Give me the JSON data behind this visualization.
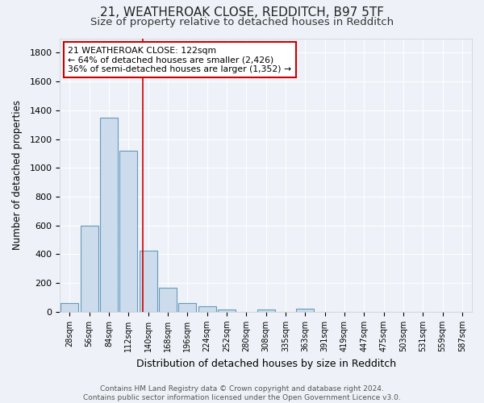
{
  "title1": "21, WEATHEROAK CLOSE, REDDITCH, B97 5TF",
  "title2": "Size of property relative to detached houses in Redditch",
  "xlabel": "Distribution of detached houses by size in Redditch",
  "ylabel": "Number of detached properties",
  "bar_labels": [
    "28sqm",
    "56sqm",
    "84sqm",
    "112sqm",
    "140sqm",
    "168sqm",
    "196sqm",
    "224sqm",
    "252sqm",
    "280sqm",
    "308sqm",
    "335sqm",
    "363sqm",
    "391sqm",
    "419sqm",
    "447sqm",
    "475sqm",
    "503sqm",
    "531sqm",
    "559sqm",
    "587sqm"
  ],
  "bar_values": [
    60,
    600,
    1350,
    1120,
    425,
    170,
    60,
    40,
    15,
    0,
    15,
    0,
    20,
    0,
    0,
    0,
    0,
    0,
    0,
    0,
    0
  ],
  "bar_color": "#ccdcec",
  "bar_edge_color": "#6699bb",
  "property_line_x": 3.72,
  "annotation_text": "21 WEATHEROAK CLOSE: 122sqm\n← 64% of detached houses are smaller (2,426)\n36% of semi-detached houses are larger (1,352) →",
  "annotation_box_color": "#ffffff",
  "annotation_box_edge": "#cc0000",
  "vline_color": "#cc0000",
  "ylim": [
    0,
    1900
  ],
  "yticks": [
    0,
    200,
    400,
    600,
    800,
    1000,
    1200,
    1400,
    1600,
    1800
  ],
  "footer": "Contains HM Land Registry data © Crown copyright and database right 2024.\nContains public sector information licensed under the Open Government Licence v3.0.",
  "background_color": "#eef2f8",
  "plot_bg_color": "#eef2f8",
  "title1_fontsize": 11,
  "title2_fontsize": 9.5,
  "xlabel_fontsize": 9,
  "ylabel_fontsize": 8.5,
  "footer_fontsize": 6.5,
  "annotation_fontsize": 7.8
}
